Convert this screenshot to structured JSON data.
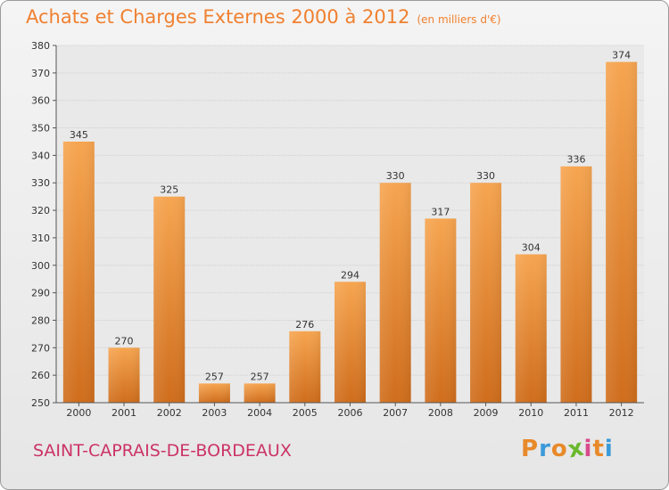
{
  "header": {
    "title": "Achats et Charges Externes 2000 à 2012",
    "subtitle": "(en milliers d'€)"
  },
  "footer": {
    "town": "SAINT-CAPRAIS-DE-BORDEAUX"
  },
  "logo": {
    "letters": [
      "P",
      "r",
      "o",
      "x",
      "i",
      "t",
      "i"
    ],
    "colors": [
      "#e8892a",
      "#3a9ad9",
      "#e8892a",
      "#6ab82e",
      "#d94a8c",
      "#e8892a",
      "#3a9ad9"
    ]
  },
  "colors": {
    "accent": "#f08030",
    "bar_light": "#f6a550",
    "bar_dark": "#cf6d1c",
    "town": "#cc3366"
  },
  "chart_data": {
    "type": "bar",
    "title": "Achats et Charges Externes 2000 à 2012",
    "subtitle": "(en milliers d'€)",
    "categories": [
      "2000",
      "2001",
      "2002",
      "2003",
      "2004",
      "2005",
      "2006",
      "2007",
      "2008",
      "2009",
      "2010",
      "2011",
      "2012"
    ],
    "values": [
      345,
      270,
      325,
      257,
      257,
      276,
      294,
      330,
      317,
      330,
      304,
      336,
      374
    ],
    "data_labels": [
      "345",
      "270",
      "325",
      "257",
      "257",
      "276",
      "294",
      "330",
      "317",
      "330",
      "304",
      "336",
      "374"
    ],
    "y_ticks": [
      "250",
      "260",
      "270",
      "280",
      "290",
      "300",
      "310",
      "320",
      "330",
      "340",
      "350",
      "360",
      "370",
      "380"
    ],
    "ylim": [
      250,
      380
    ],
    "xlabel": "",
    "ylabel": "",
    "grid": true,
    "legend": "none"
  }
}
